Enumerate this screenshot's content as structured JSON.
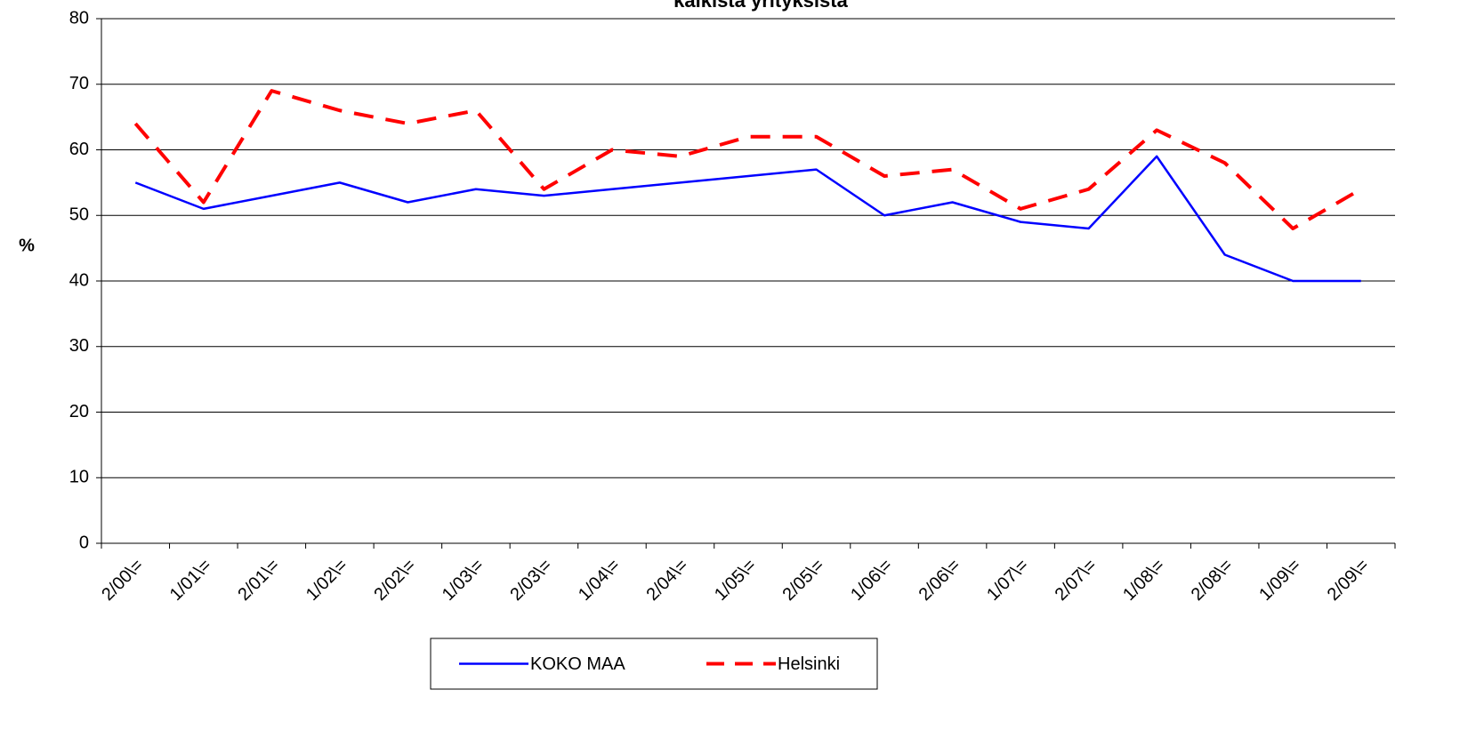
{
  "chart_data": {
    "type": "line",
    "title": "kaikista yrityksistä",
    "y_label": "%",
    "categories": [
      "2/00\\=",
      "1/01\\=",
      "2/01\\=",
      "1/02\\=",
      "2/02\\=",
      "1/03\\=",
      "2/03\\=",
      "1/04\\=",
      "2/04\\=",
      "1/05\\=",
      "2/05\\=",
      "1/06\\=",
      "2/06\\=",
      "1/07\\=",
      "2/07\\=",
      "1/08\\=",
      "2/08\\=",
      "1/09\\=",
      "2/09\\="
    ],
    "series": [
      {
        "name": "KOKO MAA",
        "color": "#0000ff",
        "line_style": "solid",
        "values": [
          55,
          51,
          53,
          55,
          52,
          54,
          53,
          54,
          55,
          56,
          57,
          50,
          52,
          49,
          48,
          59,
          44,
          40,
          40
        ]
      },
      {
        "name": "Helsinki",
        "color": "#ff0000",
        "line_style": "dashed",
        "values": [
          64,
          52,
          69,
          66,
          64,
          66,
          54,
          60,
          59,
          62,
          62,
          56,
          57,
          51,
          54,
          63,
          58,
          48,
          54
        ]
      }
    ],
    "ylim": [
      0,
      80
    ],
    "yticks": [
      0,
      10,
      20,
      30,
      40,
      50,
      60,
      70,
      80
    ],
    "grid": true,
    "legend": "bottom"
  }
}
